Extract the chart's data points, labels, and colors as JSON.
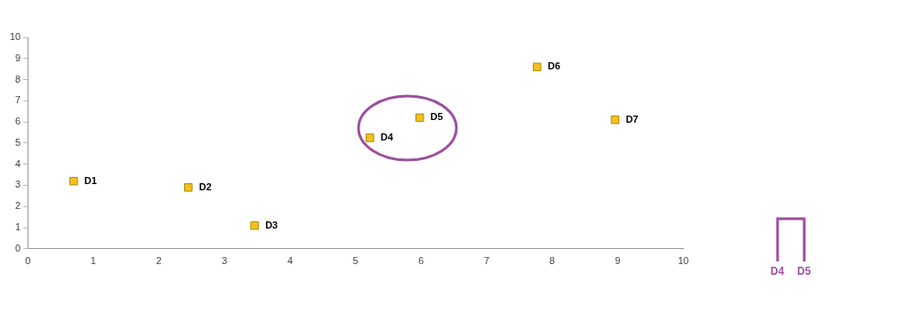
{
  "chart_data": {
    "type": "scatter",
    "marker": "square",
    "grid": false,
    "legend": false,
    "x": [
      0.7,
      2.45,
      3.46,
      5.22,
      5.98,
      7.77,
      8.96
    ],
    "values": [
      3.2,
      2.9,
      1.1,
      5.25,
      6.2,
      8.6,
      6.1
    ],
    "color": "#f5c01a",
    "xlim": [
      0,
      10
    ],
    "xticks": [
      0,
      1,
      2,
      3,
      4,
      5,
      6,
      7,
      8,
      9,
      10
    ],
    "ylim": [
      0,
      10
    ],
    "yticks": [
      0,
      1,
      2,
      3,
      4,
      5,
      6,
      7,
      8,
      9,
      10
    ],
    "annotations": [
      {
        "text": "D1",
        "x": 0.7,
        "y": 3.2
      },
      {
        "text": "D2",
        "x": 2.45,
        "y": 2.9
      },
      {
        "text": "D3",
        "x": 3.46,
        "y": 1.1
      },
      {
        "text": "D4",
        "x": 5.22,
        "y": 5.25
      },
      {
        "text": "D5",
        "x": 5.98,
        "y": 6.2
      },
      {
        "text": "D6",
        "x": 7.77,
        "y": 8.6
      },
      {
        "text": "D7",
        "x": 8.96,
        "y": 6.1
      },
      "D4",
      "D5"
    ]
  }
}
